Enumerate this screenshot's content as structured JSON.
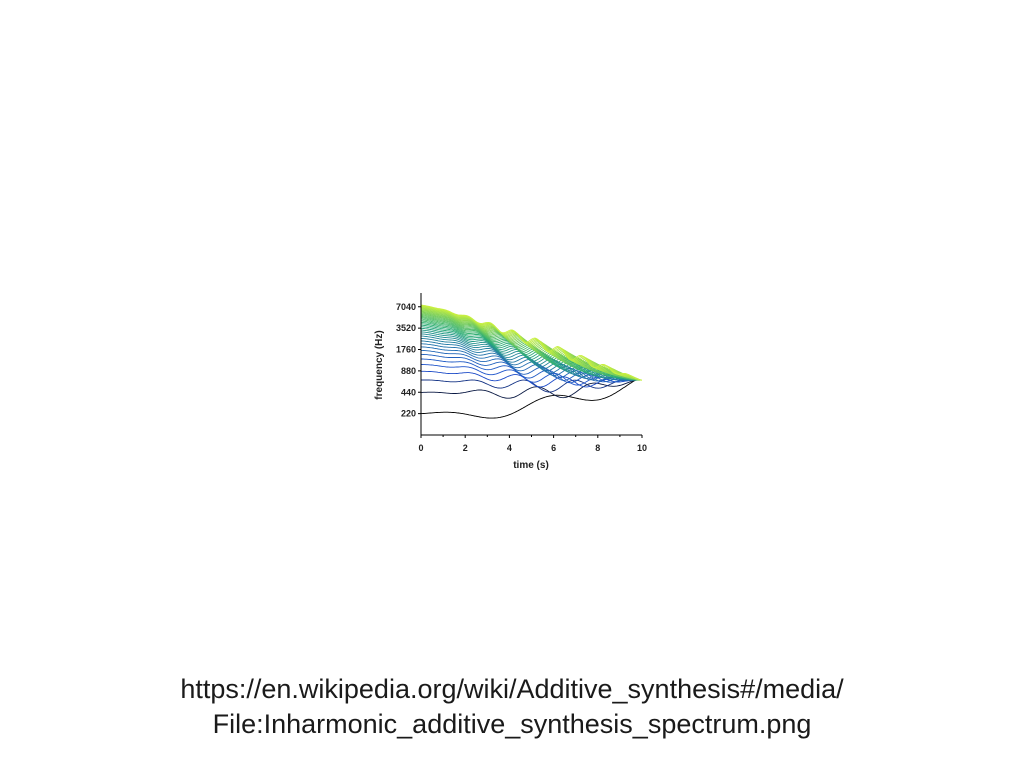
{
  "chart_data": {
    "type": "line",
    "title": "",
    "xlabel": "time (s)",
    "ylabel": "frequency (Hz)",
    "xlim": [
      0,
      10
    ],
    "ylim": [
      110,
      11000
    ],
    "yscale": "log2",
    "xticks": [
      "0",
      "2",
      "4",
      "6",
      "8",
      "10"
    ],
    "yticks": [
      "220",
      "440",
      "880",
      "1760",
      "3520",
      "7040"
    ],
    "yticks_values": [
      220,
      440,
      880,
      1760,
      3520,
      7040
    ],
    "grid": false,
    "series_count": 40,
    "start_freqs_hz": [
      220,
      440,
      660,
      880,
      1100,
      1320,
      1540,
      1760,
      1980,
      2200
    ],
    "end_freq_hz": 650,
    "end_time_s": 10,
    "colors": {
      "low": "#000000",
      "mid": "#1f4fd0",
      "high": "#c8f040"
    }
  },
  "caption": {
    "line1": "https://en.wikipedia.org/wiki/Additive_synthesis#/media/",
    "line2": "File:Inharmonic_additive_synthesis_spectrum.png"
  }
}
